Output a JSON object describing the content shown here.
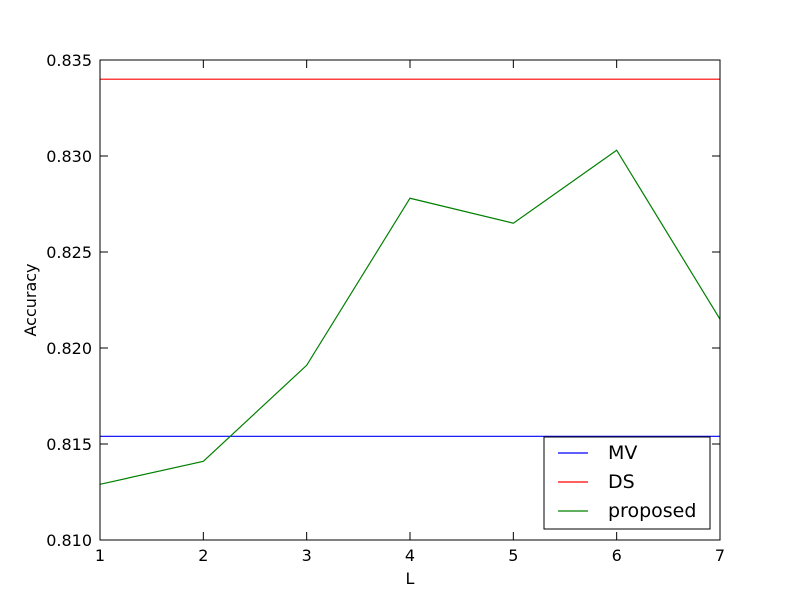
{
  "chart_data": {
    "type": "line",
    "x": [
      1,
      2,
      3,
      4,
      5,
      6,
      7
    ],
    "xlabel": "L",
    "ylabel": "Accuracy",
    "xlim": [
      1,
      7
    ],
    "ylim": [
      0.81,
      0.835
    ],
    "x_ticks": [
      "1",
      "2",
      "3",
      "4",
      "5",
      "6",
      "7"
    ],
    "y_ticks": [
      "0.810",
      "0.815",
      "0.820",
      "0.825",
      "0.830",
      "0.835"
    ],
    "grid": false,
    "legend_position": "lower-right",
    "series": [
      {
        "name": "MV",
        "color": "#0000ff",
        "values": [
          0.8154,
          0.8154,
          0.8154,
          0.8154,
          0.8154,
          0.8154,
          0.8154
        ]
      },
      {
        "name": "DS",
        "color": "#ff0000",
        "values": [
          0.834,
          0.834,
          0.834,
          0.834,
          0.834,
          0.834,
          0.834
        ]
      },
      {
        "name": "proposed",
        "color": "#008000",
        "values": [
          0.8129,
          0.8141,
          0.8191,
          0.8278,
          0.8265,
          0.8303,
          0.8215
        ]
      }
    ]
  }
}
